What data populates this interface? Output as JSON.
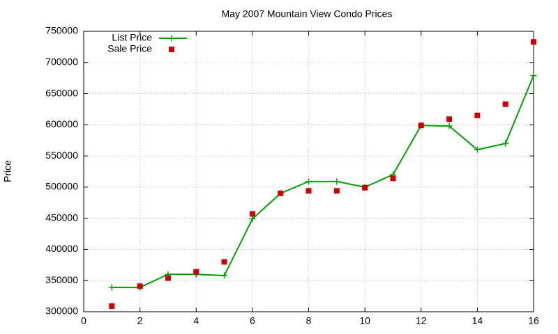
{
  "chart_data": {
    "type": "line",
    "title": "May 2007 Mountain View Condo Prices",
    "y_label": "Price",
    "x": [
      1,
      2,
      3,
      4,
      5,
      6,
      7,
      8,
      9,
      10,
      11,
      12,
      13,
      14,
      15,
      16
    ],
    "series": [
      {
        "name": "List Price",
        "color": "#00a000",
        "line": true,
        "marker": "plus",
        "values": [
          339000,
          339000,
          360000,
          360000,
          358000,
          449000,
          490000,
          509000,
          509000,
          500000,
          520000,
          599000,
          598000,
          560000,
          570000,
          679000
        ]
      },
      {
        "name": "Sale Price",
        "color": "#cc0000",
        "line": false,
        "marker": "square",
        "values": [
          309000,
          341000,
          354000,
          364000,
          380000,
          457000,
          490000,
          494000,
          494000,
          499000,
          514000,
          599000,
          609000,
          615000,
          633000,
          733000
        ]
      }
    ],
    "xlim": [
      0,
      16
    ],
    "xticks": [
      0,
      2,
      4,
      6,
      8,
      10,
      12,
      14,
      16
    ],
    "ylim": [
      300000,
      750000
    ],
    "yticks": [
      300000,
      350000,
      400000,
      450000,
      500000,
      550000,
      600000,
      650000,
      700000,
      750000
    ],
    "grid": true,
    "legend": "top-left"
  }
}
